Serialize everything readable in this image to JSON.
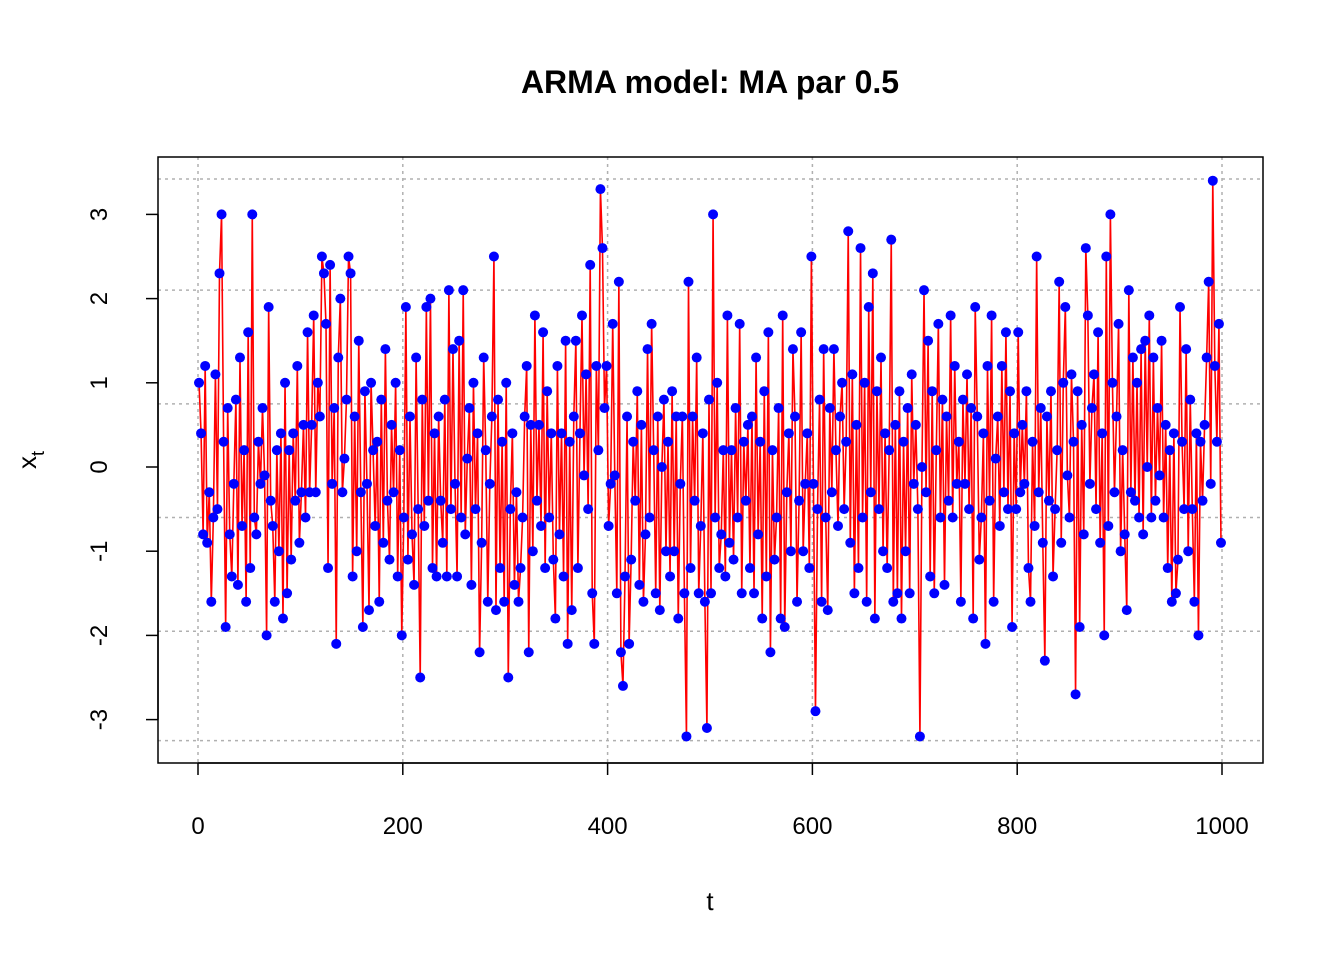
{
  "chart_data": {
    "type": "line",
    "title": "ARMA model: MA par 0.5",
    "xlabel": "t",
    "ylabel": {
      "base": "x",
      "subscript": "t"
    },
    "xlim": [
      0,
      1000
    ],
    "ylim": [
      -3.3,
      3.4
    ],
    "x_ticks": [
      0,
      200,
      400,
      600,
      800,
      1000
    ],
    "y_ticks": [
      -3,
      -2,
      -1,
      0,
      1,
      2,
      3
    ],
    "x_tick_labels": [
      "0",
      "200",
      "400",
      "600",
      "800",
      "1000"
    ],
    "y_tick_labels": [
      "-3",
      "-2",
      "-1",
      "0",
      "1",
      "2",
      "3"
    ],
    "grid": true,
    "grid_x": [
      0,
      200,
      400,
      600,
      800,
      1000
    ],
    "grid_y": [
      -3.25,
      -1.95,
      -0.6,
      0.75,
      2.1,
      3.42
    ],
    "colors": {
      "line": "#ff0000",
      "points": "#0000ff",
      "grid": "#b0b0b0"
    },
    "series": [
      {
        "x": [
          1,
          3,
          5,
          7,
          9,
          11,
          13,
          15,
          17,
          19,
          21,
          23,
          25,
          27,
          29,
          31,
          33,
          35,
          37,
          39,
          41,
          43,
          45,
          47,
          49,
          51,
          53,
          55,
          57,
          59,
          61,
          63,
          65,
          67,
          69,
          71,
          73,
          75,
          77,
          79,
          81,
          83,
          85,
          87,
          89,
          91,
          93,
          95,
          97,
          99,
          101,
          103,
          105,
          107,
          109,
          111,
          113,
          115,
          117,
          119,
          121,
          123,
          125,
          127,
          129,
          131,
          133,
          135,
          137,
          139,
          141,
          143,
          145,
          147,
          149,
          151,
          153,
          155,
          157,
          159,
          161,
          163,
          165,
          167,
          169,
          171,
          173,
          175,
          177,
          179,
          181,
          183,
          185,
          187,
          189,
          191,
          193,
          195,
          197,
          199,
          201,
          203,
          205,
          207,
          209,
          211,
          213,
          215,
          217,
          219,
          221,
          223,
          225,
          227,
          229,
          231,
          233,
          235,
          237,
          239,
          241,
          243,
          245,
          247,
          249,
          251,
          253,
          255,
          257,
          259,
          261,
          263,
          265,
          267,
          269,
          271,
          273,
          275,
          277,
          279,
          281,
          283,
          285,
          287,
          289,
          291,
          293,
          295,
          297,
          299,
          301,
          303,
          305,
          307,
          309,
          311,
          313,
          315,
          317,
          319,
          321,
          323,
          325,
          327,
          329,
          331,
          333,
          335,
          337,
          339,
          341,
          343,
          345,
          347,
          349,
          351,
          353,
          355,
          357,
          359,
          361,
          363,
          365,
          367,
          369,
          371,
          373,
          375,
          377,
          379,
          381,
          383,
          385,
          387,
          389,
          391,
          393,
          395,
          397,
          399,
          401,
          403,
          405,
          407,
          409,
          411,
          413,
          415,
          417,
          419,
          421,
          423,
          425,
          427,
          429,
          431,
          433,
          435,
          437,
          439,
          441,
          443,
          445,
          447,
          449,
          451,
          453,
          455,
          457,
          459,
          461,
          463,
          465,
          467,
          469,
          471,
          473,
          475,
          477,
          479,
          481,
          483,
          485,
          487,
          489,
          491,
          493,
          495,
          497,
          499,
          501,
          503,
          505,
          507,
          509,
          511,
          513,
          515,
          517,
          519,
          521,
          523,
          525,
          527,
          529,
          531,
          533,
          535,
          537,
          539,
          541,
          543,
          545,
          547,
          549,
          551,
          553,
          555,
          557,
          559,
          561,
          563,
          565,
          567,
          569,
          571,
          573,
          575,
          577,
          579,
          581,
          583,
          585,
          587,
          589,
          591,
          593,
          595,
          597,
          599,
          601,
          603,
          605,
          607,
          609,
          611,
          613,
          615,
          617,
          619,
          621,
          623,
          625,
          627,
          629,
          631,
          633,
          635,
          637,
          639,
          641,
          643,
          645,
          647,
          649,
          651,
          653,
          655,
          657,
          659,
          661,
          663,
          665,
          667,
          669,
          671,
          673,
          675,
          677,
          679,
          681,
          683,
          685,
          687,
          689,
          691,
          693,
          695,
          697,
          699,
          701,
          703,
          705,
          707,
          709,
          711,
          713,
          715,
          717,
          719,
          721,
          723,
          725,
          727,
          729,
          731,
          733,
          735,
          737,
          739,
          741,
          743,
          745,
          747,
          749,
          751,
          753,
          755,
          757,
          759,
          761,
          763,
          765,
          767,
          769,
          771,
          773,
          775,
          777,
          779,
          781,
          783,
          785,
          787,
          789,
          791,
          793,
          795,
          797,
          799,
          801,
          803,
          805,
          807,
          809,
          811,
          813,
          815,
          817,
          819,
          821,
          823,
          825,
          827,
          829,
          831,
          833,
          835,
          837,
          839,
          841,
          843,
          845,
          847,
          849,
          851,
          853,
          855,
          857,
          859,
          861,
          863,
          865,
          867,
          869,
          871,
          873,
          875,
          877,
          879,
          881,
          883,
          885,
          887,
          889,
          891,
          893,
          895,
          897,
          899,
          901,
          903,
          905,
          907,
          909,
          911,
          913,
          915,
          917,
          919,
          921,
          923,
          925,
          927,
          929,
          931,
          933,
          935,
          937,
          939,
          941,
          943,
          945,
          947,
          949,
          951,
          953,
          955,
          957,
          959,
          961,
          963,
          965,
          967,
          969,
          971,
          973,
          975,
          977,
          979,
          981,
          983,
          985,
          987,
          989,
          991,
          993,
          995,
          997,
          999
        ],
        "y": [
          1.0,
          0.4,
          -0.8,
          1.2,
          -0.9,
          -0.3,
          -1.6,
          -0.6,
          1.1,
          -0.5,
          2.3,
          3.0,
          0.3,
          -1.9,
          0.7,
          -0.8,
          -1.3,
          -0.2,
          0.8,
          -1.4,
          1.3,
          -0.7,
          0.2,
          -1.6,
          1.6,
          -1.2,
          3.0,
          -0.6,
          -0.8,
          0.3,
          -0.2,
          0.7,
          -0.1,
          -2.0,
          1.9,
          -0.4,
          -0.7,
          -1.6,
          0.2,
          -1.0,
          0.4,
          -1.8,
          1.0,
          -1.5,
          0.2,
          -1.1,
          0.4,
          -0.4,
          1.2,
          -0.9,
          -0.3,
          0.5,
          -0.6,
          1.6,
          -0.3,
          0.5,
          1.8,
          -0.3,
          1.0,
          0.6,
          2.5,
          2.3,
          1.7,
          -1.2,
          2.4,
          -0.2,
          0.7,
          -2.1,
          1.3,
          2.0,
          -0.3,
          0.1,
          0.8,
          2.5,
          2.3,
          -1.3,
          0.6,
          -1.0,
          1.5,
          -0.3,
          -1.9,
          0.9,
          -0.2,
          -1.7,
          1.0,
          0.2,
          -0.7,
          0.3,
          -1.6,
          0.8,
          -0.9,
          1.4,
          -0.4,
          -1.1,
          0.5,
          -0.3,
          1.0,
          -1.3,
          0.2,
          -2.0,
          -0.6,
          1.9,
          -1.1,
          0.6,
          -0.8,
          -1.4,
          1.3,
          -0.5,
          -2.5,
          0.8,
          -0.7,
          1.9,
          -0.4,
          2.0,
          -1.2,
          0.4,
          -1.3,
          0.6,
          -0.4,
          -0.9,
          0.8,
          -1.3,
          2.1,
          -0.5,
          1.4,
          -0.2,
          -1.3,
          1.5,
          -0.6,
          2.1,
          -0.8,
          0.1,
          0.7,
          -1.4,
          1.0,
          -0.5,
          0.4,
          -2.2,
          -0.9,
          1.3,
          0.2,
          -1.6,
          -0.2,
          0.6,
          2.5,
          -1.7,
          0.8,
          -1.2,
          0.3,
          -1.6,
          1.0,
          -2.5,
          -0.5,
          0.4,
          -1.4,
          -0.3,
          -1.6,
          -1.2,
          -0.6,
          0.6,
          1.2,
          -2.2,
          0.5,
          -1.0,
          1.8,
          -0.4,
          0.5,
          -0.7,
          1.6,
          -1.2,
          0.9,
          -0.6,
          0.4,
          -1.1,
          -1.8,
          1.2,
          -0.8,
          0.4,
          -1.3,
          1.5,
          -2.1,
          0.3,
          -1.7,
          0.6,
          1.5,
          -1.2,
          0.4,
          1.8,
          -0.1,
          1.1,
          -0.5,
          2.4,
          -1.5,
          -2.1,
          1.2,
          0.2,
          3.3,
          2.6,
          0.7,
          1.2,
          -0.7,
          -0.2,
          1.7,
          -0.1,
          -1.5,
          2.2,
          -2.2,
          -2.6,
          -1.3,
          0.6,
          -2.1,
          -1.1,
          0.3,
          -0.4,
          0.9,
          -1.4,
          0.5,
          -1.6,
          -0.8,
          1.4,
          -0.6,
          1.7,
          0.2,
          -1.5,
          0.6,
          -1.7,
          0.0,
          0.8,
          -1.0,
          0.3,
          -1.3,
          0.9,
          -1.0,
          0.6,
          -1.8,
          -0.2,
          0.6,
          -1.5,
          -3.2,
          2.2,
          -1.2,
          0.6,
          -0.4,
          1.3,
          -1.5,
          -0.7,
          0.4,
          -1.6,
          -3.1,
          0.8,
          -1.5,
          3.0,
          -0.6,
          1.0,
          -1.2,
          -0.8,
          0.2,
          -1.3,
          1.8,
          -0.9,
          0.2,
          -1.1,
          0.7,
          -0.6,
          1.7,
          -1.5,
          0.3,
          -0.4,
          0.5,
          -1.2,
          0.6,
          -1.5,
          1.3,
          -0.8,
          0.3,
          -1.8,
          0.9,
          -1.3,
          1.6,
          -2.2,
          0.2,
          -1.1,
          -0.6,
          0.7,
          -1.8,
          1.8,
          -1.9,
          -0.3,
          0.4,
          -1.0,
          1.4,
          0.6,
          -1.6,
          -0.4,
          1.6,
          -1.0,
          -0.2,
          0.4,
          -1.2,
          2.5,
          -0.2,
          -2.9,
          -0.5,
          0.8,
          -1.6,
          1.4,
          -0.6,
          -1.7,
          0.7,
          -0.3,
          1.4,
          0.2,
          -0.7,
          0.6,
          1.0,
          -0.5,
          0.3,
          2.8,
          -0.9,
          1.1,
          -1.5,
          0.5,
          -1.2,
          2.6,
          -0.6,
          1.0,
          -1.6,
          1.9,
          -0.3,
          2.3,
          -1.8,
          0.9,
          -0.5,
          1.3,
          -1.0,
          0.4,
          -1.2,
          0.2,
          2.7,
          -1.6,
          0.5,
          -1.5,
          0.9,
          -1.8,
          0.3,
          -1.0,
          0.7,
          -1.5,
          1.1,
          -0.2,
          0.5,
          -0.5,
          -3.2,
          0.0,
          2.1,
          -0.3,
          1.5,
          -1.3,
          0.9,
          -1.5,
          0.2,
          1.7,
          -0.6,
          0.8,
          -1.4,
          0.6,
          -0.4,
          1.8,
          -0.6,
          1.2,
          -0.2,
          0.3,
          -1.6,
          0.8,
          -0.2,
          1.1,
          -0.5,
          0.7,
          -1.8,
          1.9,
          0.6,
          -1.1,
          -0.6,
          0.4,
          -2.1,
          1.2,
          -0.4,
          1.8,
          -1.6,
          0.1,
          0.6,
          -0.7,
          1.2,
          -0.3,
          1.6,
          -0.5,
          0.9,
          -1.9,
          0.4,
          -0.5,
          1.6,
          -0.3,
          0.5,
          -0.2,
          0.9,
          -1.2,
          -1.6,
          0.3,
          -0.7,
          2.5,
          -0.3,
          0.7,
          -0.9,
          -2.3,
          0.6,
          -0.4,
          0.9,
          -1.3,
          -0.5,
          0.2,
          2.2,
          -0.9,
          1.0,
          1.9,
          -0.1,
          -0.6,
          1.1,
          0.3,
          -2.7,
          0.9,
          -1.9,
          0.5,
          -0.8,
          2.6,
          1.8,
          -0.2,
          0.7,
          1.1,
          -0.5,
          1.6,
          -0.9,
          0.4,
          -2.0,
          2.5,
          -0.7,
          3.0,
          1.0,
          -0.3,
          0.6,
          1.7,
          -1.0,
          0.2,
          -0.8,
          -1.7,
          2.1,
          -0.3,
          1.3,
          -0.4,
          1.0,
          -0.6,
          1.4,
          -0.8,
          1.5,
          0.0,
          1.8,
          -0.6,
          1.3,
          -0.4,
          0.7,
          -0.1,
          1.5,
          -0.6,
          0.5,
          -1.2,
          0.2,
          -1.6,
          0.4,
          -1.5,
          -1.1,
          1.9,
          0.3,
          -0.5,
          1.4,
          -1.0,
          0.8,
          -0.5,
          -1.6,
          0.4,
          -2.0,
          0.3,
          -0.4,
          0.5,
          1.3,
          2.2,
          -0.2,
          3.4,
          1.2,
          0.3,
          1.7,
          -0.9
        ]
      }
    ]
  }
}
